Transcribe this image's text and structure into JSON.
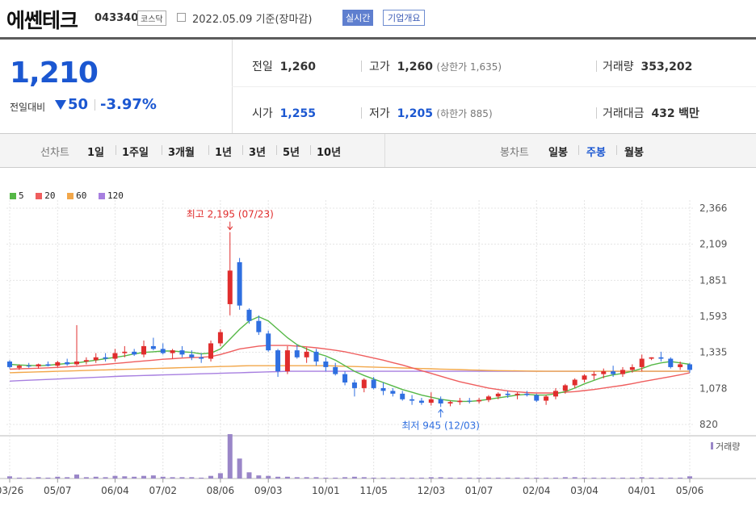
{
  "header": {
    "name": "에쎈테크",
    "code": "043340",
    "market": "코스닥",
    "date": "2022.05.09 기준(장마감)",
    "realtime": "실시간",
    "company_info": "기업개요"
  },
  "quote": {
    "price": "1,210",
    "change_label": "전일대비",
    "change": "50",
    "change_pct": "-3.97%",
    "prev_label": "전일",
    "prev": "1,260",
    "high_label": "고가",
    "high": "1,260",
    "high_sub": "(상한가 1,635)",
    "volume_label": "거래량",
    "volume": "353,202",
    "open_label": "시가",
    "open": "1,255",
    "low_label": "저가",
    "low": "1,205",
    "low_sub": "(하한가 885)",
    "amount_label": "거래대금",
    "amount": "432",
    "amount_unit": "백만"
  },
  "tabs": {
    "line_label": "선차트",
    "line": [
      "1일",
      "1주일",
      "3개월",
      "1년",
      "3년",
      "5년",
      "10년"
    ],
    "candle_label": "봉차트",
    "candle": [
      "일봉",
      "주봉",
      "월봉"
    ],
    "candle_selected": "주봉"
  },
  "colors": {
    "up": "#e02d2d",
    "down": "#2f6fe0",
    "ma5": "#56b847",
    "ma20": "#ef5e5e",
    "ma60": "#f2a74a",
    "ma120": "#a77fe0",
    "volume": "#9a86c8",
    "grid": "#ddd"
  },
  "chart_data": {
    "type": "candlestick",
    "legend": [
      {
        "name": "5",
        "color": "#56b847"
      },
      {
        "name": "20",
        "color": "#ef5e5e"
      },
      {
        "name": "60",
        "color": "#f2a74a"
      },
      {
        "name": "120",
        "color": "#a77fe0"
      }
    ],
    "y_ticks": [
      "2,366",
      "2,109",
      "1,851",
      "1,593",
      "1,335",
      "1,078",
      "820"
    ],
    "ylim": [
      820,
      2366
    ],
    "x_ticks": [
      "03/26",
      "05/07",
      "06/04",
      "07/02",
      "08/06",
      "09/03",
      "10/01",
      "11/05",
      "12/03",
      "01/07",
      "02/04",
      "03/04",
      "04/01",
      "05/06"
    ],
    "annotation_high": "최고 2,195 (07/23)",
    "annotation_low": "최저 945 (12/03)",
    "volume_label": "거래량",
    "candles": [
      [
        1270,
        1280,
        1220,
        1230
      ],
      [
        1225,
        1250,
        1210,
        1240
      ],
      [
        1240,
        1260,
        1225,
        1235
      ],
      [
        1235,
        1255,
        1220,
        1250
      ],
      [
        1250,
        1270,
        1235,
        1240
      ],
      [
        1240,
        1275,
        1230,
        1265
      ],
      [
        1265,
        1290,
        1240,
        1250
      ],
      [
        1250,
        1530,
        1240,
        1270
      ],
      [
        1270,
        1300,
        1250,
        1280
      ],
      [
        1280,
        1330,
        1260,
        1300
      ],
      [
        1300,
        1330,
        1270,
        1290
      ],
      [
        1290,
        1360,
        1270,
        1330
      ],
      [
        1330,
        1380,
        1300,
        1340
      ],
      [
        1340,
        1360,
        1310,
        1320
      ],
      [
        1320,
        1420,
        1300,
        1380
      ],
      [
        1380,
        1440,
        1350,
        1360
      ],
      [
        1360,
        1400,
        1320,
        1330
      ],
      [
        1330,
        1360,
        1290,
        1350
      ],
      [
        1350,
        1380,
        1300,
        1320
      ],
      [
        1320,
        1350,
        1280,
        1300
      ],
      [
        1300,
        1330,
        1260,
        1290
      ],
      [
        1290,
        1420,
        1270,
        1400
      ],
      [
        1400,
        1500,
        1380,
        1480
      ],
      [
        1680,
        2195,
        1600,
        1920
      ],
      [
        1980,
        2010,
        1640,
        1670
      ],
      [
        1640,
        1650,
        1540,
        1560
      ],
      [
        1560,
        1600,
        1460,
        1480
      ],
      [
        1470,
        1490,
        1340,
        1350
      ],
      [
        1350,
        1360,
        1160,
        1200
      ],
      [
        1200,
        1380,
        1180,
        1350
      ],
      [
        1350,
        1390,
        1290,
        1300
      ],
      [
        1300,
        1370,
        1260,
        1340
      ],
      [
        1340,
        1360,
        1240,
        1270
      ],
      [
        1270,
        1300,
        1200,
        1230
      ],
      [
        1230,
        1260,
        1170,
        1180
      ],
      [
        1180,
        1200,
        1100,
        1120
      ],
      [
        1120,
        1140,
        1020,
        1080
      ],
      [
        1080,
        1150,
        1050,
        1140
      ],
      [
        1140,
        1160,
        1070,
        1080
      ],
      [
        1080,
        1120,
        1030,
        1060
      ],
      [
        1060,
        1080,
        1020,
        1040
      ],
      [
        1040,
        1060,
        990,
        1000
      ],
      [
        1000,
        1030,
        960,
        990
      ],
      [
        990,
        1010,
        960,
        975
      ],
      [
        975,
        1050,
        955,
        1000
      ],
      [
        1000,
        1020,
        945,
        970
      ],
      [
        970,
        990,
        950,
        980
      ],
      [
        980,
        1010,
        960,
        990
      ],
      [
        990,
        1010,
        970,
        985
      ],
      [
        985,
        1010,
        970,
        995
      ],
      [
        995,
        1030,
        980,
        1020
      ],
      [
        1020,
        1050,
        1000,
        1040
      ],
      [
        1040,
        1060,
        1010,
        1030
      ],
      [
        1030,
        1050,
        1000,
        1040
      ],
      [
        1040,
        1060,
        1020,
        1030
      ],
      [
        1030,
        1040,
        980,
        990
      ],
      [
        990,
        1030,
        960,
        1020
      ],
      [
        1020,
        1080,
        1000,
        1060
      ],
      [
        1060,
        1110,
        1040,
        1100
      ],
      [
        1100,
        1150,
        1080,
        1140
      ],
      [
        1140,
        1180,
        1120,
        1170
      ],
      [
        1170,
        1200,
        1140,
        1180
      ],
      [
        1180,
        1220,
        1150,
        1200
      ],
      [
        1200,
        1240,
        1160,
        1180
      ],
      [
        1180,
        1230,
        1160,
        1210
      ],
      [
        1210,
        1250,
        1190,
        1230
      ],
      [
        1230,
        1320,
        1200,
        1290
      ],
      [
        1290,
        1300,
        1280,
        1300
      ],
      [
        1300,
        1340,
        1270,
        1290
      ],
      [
        1290,
        1300,
        1220,
        1230
      ],
      [
        1230,
        1270,
        1210,
        1250
      ],
      [
        1250,
        1260,
        1190,
        1210
      ]
    ],
    "ma5": [
      1250,
      1245,
      1242,
      1240,
      1243,
      1250,
      1256,
      1260,
      1270,
      1280,
      1290,
      1300,
      1310,
      1325,
      1335,
      1340,
      1345,
      1345,
      1340,
      1335,
      1325,
      1330,
      1360,
      1430,
      1500,
      1560,
      1590,
      1560,
      1500,
      1440,
      1390,
      1360,
      1330,
      1310,
      1280,
      1240,
      1200,
      1170,
      1145,
      1120,
      1095,
      1070,
      1050,
      1030,
      1015,
      1000,
      990,
      985,
      985,
      990,
      1000,
      1010,
      1020,
      1030,
      1035,
      1030,
      1030,
      1040,
      1055,
      1080,
      1110,
      1135,
      1160,
      1175,
      1185,
      1200,
      1220,
      1245,
      1260,
      1270,
      1260,
      1250
    ],
    "ma20": [
      1215,
      1218,
      1220,
      1222,
      1225,
      1228,
      1232,
      1236,
      1240,
      1245,
      1250,
      1256,
      1262,
      1268,
      1274,
      1280,
      1286,
      1290,
      1295,
      1298,
      1300,
      1305,
      1320,
      1340,
      1360,
      1370,
      1380,
      1385,
      1385,
      1385,
      1380,
      1375,
      1368,
      1360,
      1350,
      1340,
      1325,
      1310,
      1295,
      1280,
      1262,
      1245,
      1225,
      1205,
      1185,
      1165,
      1145,
      1125,
      1110,
      1095,
      1080,
      1070,
      1060,
      1053,
      1048,
      1045,
      1045,
      1046,
      1050,
      1055,
      1062,
      1070,
      1080,
      1090,
      1100,
      1112,
      1125,
      1138,
      1150,
      1162,
      1175,
      1190
    ],
    "ma60": [
      1190,
      1192,
      1194,
      1196,
      1198,
      1200,
      1202,
      1204,
      1206,
      1208,
      1210,
      1212,
      1214,
      1216,
      1218,
      1220,
      1222,
      1224,
      1226,
      1228,
      1230,
      1232,
      1234,
      1236,
      1238,
      1240,
      1240,
      1240,
      1240,
      1240,
      1240,
      1240,
      1240,
      1240,
      1238,
      1236,
      1234,
      1232,
      1230,
      1228,
      1226,
      1224,
      1222,
      1220,
      1218,
      1216,
      1214,
      1212,
      1210,
      1208,
      1206,
      1205,
      1204,
      1203,
      1202,
      1201,
      1200,
      1200,
      1200,
      1200,
      1200,
      1200,
      1200,
      1200,
      1200,
      1200,
      1200,
      1200,
      1200,
      1200,
      1200,
      1200
    ],
    "ma120": [
      1130,
      1133,
      1136,
      1139,
      1142,
      1145,
      1148,
      1151,
      1154,
      1157,
      1160,
      1163,
      1166,
      1168,
      1170,
      1172,
      1174,
      1176,
      1178,
      1180,
      1182,
      1184,
      1186,
      1188,
      1190,
      1192,
      1194,
      1196,
      1198,
      1200,
      1200,
      1200,
      1200,
      1200,
      1200,
      1200,
      1200,
      1200,
      1200,
      1200,
      1200,
      1200,
      1200,
      1200,
      1200,
      1200,
      1200,
      1200,
      1200,
      1200,
      1200,
      1200,
      1200,
      1200,
      1200,
      1200,
      1200,
      1200,
      1200,
      1200,
      1200,
      1200,
      1200,
      1200,
      1200,
      1200,
      1200,
      1200,
      1200,
      1200,
      1200,
      1200
    ],
    "volume": [
      0.05,
      0.02,
      0.02,
      0.03,
      0.02,
      0.04,
      0.03,
      0.09,
      0.03,
      0.04,
      0.03,
      0.06,
      0.05,
      0.04,
      0.06,
      0.07,
      0.04,
      0.03,
      0.03,
      0.03,
      0.02,
      0.06,
      0.12,
      1.0,
      0.45,
      0.14,
      0.07,
      0.06,
      0.04,
      0.04,
      0.03,
      0.03,
      0.03,
      0.02,
      0.02,
      0.03,
      0.04,
      0.03,
      0.02,
      0.02,
      0.02,
      0.02,
      0.02,
      0.02,
      0.03,
      0.03,
      0.02,
      0.02,
      0.02,
      0.02,
      0.02,
      0.02,
      0.02,
      0.02,
      0.02,
      0.02,
      0.02,
      0.02,
      0.03,
      0.03,
      0.02,
      0.02,
      0.02,
      0.02,
      0.02,
      0.02,
      0.03,
      0.02,
      0.02,
      0.02,
      0.02,
      0.05
    ]
  }
}
